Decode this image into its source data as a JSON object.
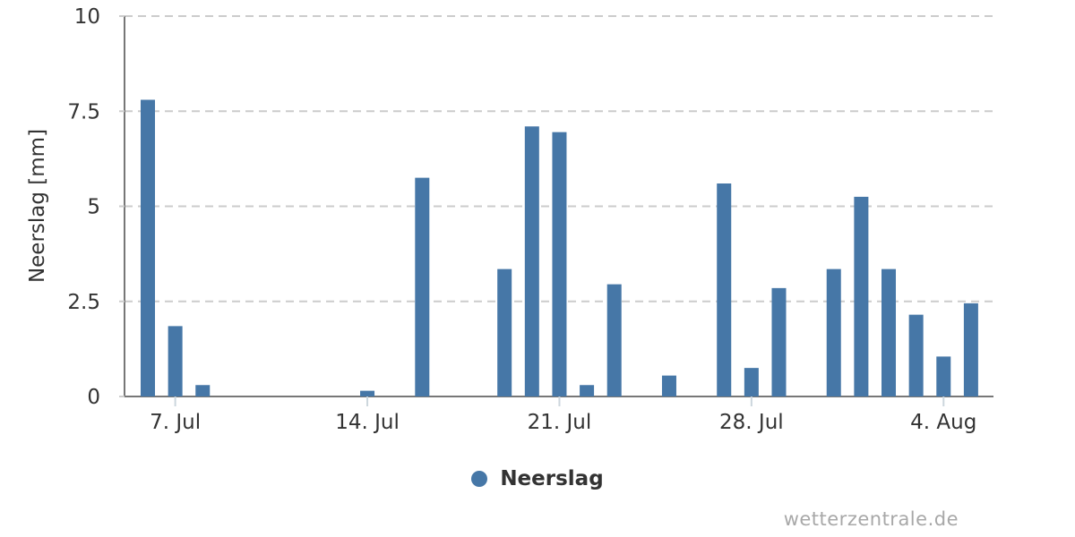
{
  "chart_data": {
    "type": "bar",
    "title": "",
    "xlabel": "",
    "ylabel": "Neerslag [mm]",
    "ylim": [
      0,
      10
    ],
    "yticks": [
      0,
      2.5,
      5,
      7.5,
      10
    ],
    "ytick_labels": [
      "0",
      "2.5",
      "5",
      "7.5",
      "10"
    ],
    "x": [
      "6. Jul",
      "7. Jul",
      "8. Jul",
      "9. Jul",
      "10. Jul",
      "11. Jul",
      "12. Jul",
      "13. Jul",
      "14. Jul",
      "15. Jul",
      "16. Jul",
      "17. Jul",
      "18. Jul",
      "19. Jul",
      "20. Jul",
      "21. Jul",
      "22. Jul",
      "23. Jul",
      "24. Jul",
      "25. Jul",
      "26. Jul",
      "27. Jul",
      "28. Jul",
      "29. Jul",
      "30. Jul",
      "31. Jul",
      "1. Aug",
      "2. Aug",
      "3. Aug",
      "4. Aug",
      "5. Aug"
    ],
    "series": [
      {
        "name": "Neerslag",
        "values": [
          7.8,
          1.85,
          0.3,
          0,
          0,
          0,
          0,
          0,
          0.15,
          0,
          5.75,
          0,
          0,
          3.35,
          7.1,
          6.95,
          0.3,
          2.95,
          0,
          0.55,
          0,
          5.6,
          0.75,
          2.85,
          0,
          3.35,
          5.25,
          3.35,
          2.15,
          1.05,
          2.45
        ]
      }
    ],
    "xtick_indices": [
      1,
      8,
      15,
      22,
      29
    ],
    "xtick_labels": [
      "7. Jul",
      "14. Jul",
      "21. Jul",
      "28. Jul",
      "4. Aug"
    ],
    "grid": "horizontal-dashed",
    "legend_position": "bottom-center"
  },
  "legend": {
    "label": "Neerslag"
  },
  "watermark": {
    "text": "wetterzentrale.de"
  },
  "colors": {
    "bar": "#4677a7",
    "axis": "#777777",
    "grid": "#cccccc",
    "xtick": "#ccd6dd",
    "text": "#333333",
    "watermark": "#a8a8a8"
  }
}
